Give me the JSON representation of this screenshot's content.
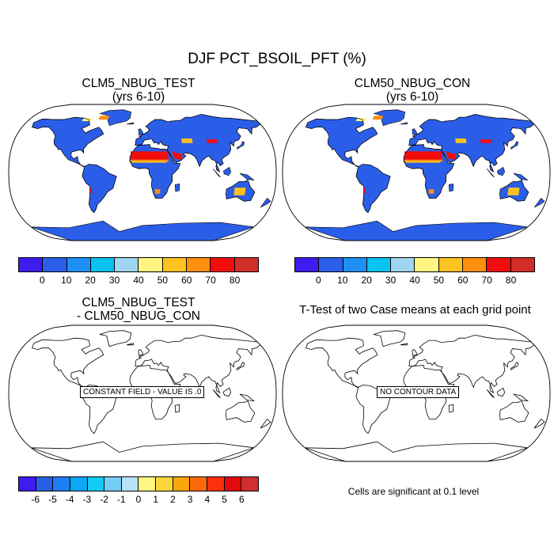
{
  "main_title": "DJF PCT_BSOIL_PFT (%)",
  "panels": {
    "test": {
      "title_line1": "CLM5_NBUG_TEST",
      "title_line2": "(yrs 6-10)"
    },
    "control": {
      "title_line1": "CLM50_NBUG_CON",
      "title_line2": "(yrs 6-10)"
    },
    "difference": {
      "title_line1": "CLM5_NBUG_TEST",
      "title_line2": "- CLM50_NBUG_CON",
      "message": "CONSTANT FIELD - VALUE IS .0"
    },
    "ttest": {
      "title": "T-Test of two Case means at each grid point",
      "message": "NO CONTOUR DATA",
      "note": "Cells are significant at 0.1 level"
    }
  },
  "legend_main": {
    "colors": [
      "#3d1cf0",
      "#2b5ee8",
      "#1e90f5",
      "#08c2f0",
      "#9fd5f0",
      "#fff582",
      "#fdc21f",
      "#fd8f0e",
      "#f20d0d",
      "#d22e28"
    ],
    "labels": [
      "0",
      "10",
      "20",
      "30",
      "40",
      "50",
      "60",
      "70",
      "80"
    ]
  },
  "legend_diff": {
    "colors": [
      "#3d1cf0",
      "#2b5ee8",
      "#1e7ef5",
      "#0aa8f5",
      "#14cbf5",
      "#74cdf2",
      "#b8e2f5",
      "#fff582",
      "#fcd53e",
      "#fca60d",
      "#fd6a0c",
      "#fd300d",
      "#e00c0c",
      "#cf2f2f"
    ],
    "labels": [
      "-6",
      "-5",
      "-4",
      "-3",
      "-2",
      "-1",
      "0",
      "1",
      "2",
      "3",
      "4",
      "5",
      "6"
    ]
  },
  "map_palette": {
    "ocean": "#ffffff",
    "coast": "#000000",
    "blue": "#2b5ee8",
    "land_empty": "#ffffff"
  }
}
